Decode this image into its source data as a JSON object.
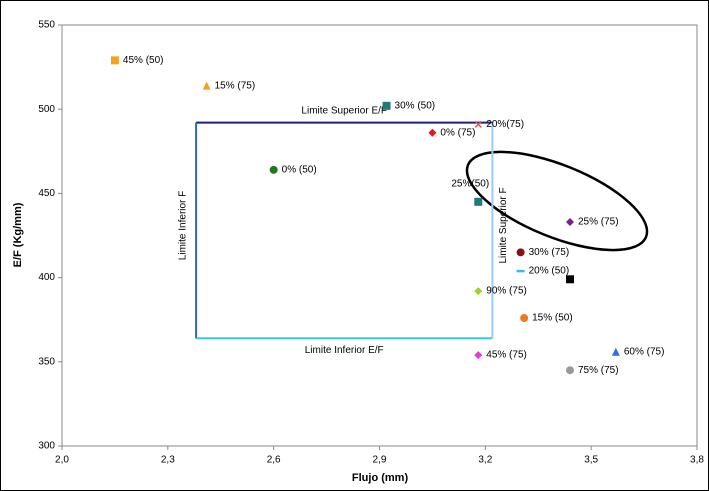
{
  "chart_data": {
    "type": "scatter",
    "x_label": "Flujo (mm)",
    "y_label": "E/F (Kg/mm)",
    "xlim": [
      2.0,
      3.8
    ],
    "xticks": [
      {
        "value": 2.0,
        "label": "2,0"
      },
      {
        "value": 2.3,
        "label": "2,3"
      },
      {
        "value": 2.6,
        "label": "2,6"
      },
      {
        "value": 2.9,
        "label": "2,9"
      },
      {
        "value": 3.2,
        "label": "3,2"
      },
      {
        "value": 3.5,
        "label": "3,5"
      },
      {
        "value": 3.8,
        "label": "3,8"
      }
    ],
    "ylim": [
      300,
      550
    ],
    "yticks": [
      300,
      350,
      400,
      450,
      500,
      550
    ],
    "series": [
      {
        "name": "45% (50)",
        "color": "#f5a11d",
        "marker": "square",
        "x": [
          2.15
        ],
        "values": [
          529
        ]
      },
      {
        "name": "15% (75)",
        "color": "#f5a11d",
        "marker": "triangle",
        "x": [
          2.41
        ],
        "values": [
          514
        ]
      },
      {
        "name": "30% (50)",
        "color": "#1f7a7a",
        "marker": "square",
        "x": [
          2.92
        ],
        "values": [
          502
        ]
      },
      {
        "name": "20%(75)",
        "color": "#e8553a",
        "marker": "x",
        "x": [
          3.18
        ],
        "values": [
          491
        ]
      },
      {
        "name": "0% (75)",
        "color": "#e8141e",
        "marker": "diamond",
        "x": [
          3.05
        ],
        "values": [
          486
        ]
      },
      {
        "name": "0% (50)",
        "color": "#1e7a1e",
        "marker": "circle",
        "x": [
          2.6
        ],
        "values": [
          464
        ]
      },
      {
        "name": "25%(50)",
        "color": "#1f7a7a",
        "marker": "square",
        "x": [
          3.18
        ],
        "values": [
          445
        ]
      },
      {
        "name": "25% (75)",
        "color": "#7a1f8c",
        "marker": "diamond",
        "x": [
          3.44
        ],
        "values": [
          433
        ]
      },
      {
        "name": "30% (75)",
        "color": "#8c1010",
        "marker": "circle",
        "x": [
          3.3
        ],
        "values": [
          415
        ]
      },
      {
        "name": "20% (50)",
        "color": "#33bbee",
        "marker": "dash",
        "x": [
          3.3
        ],
        "values": [
          404
        ]
      },
      {
        "color": "#000000",
        "marker": "square",
        "x": [
          3.44
        ],
        "values": [
          399
        ]
      },
      {
        "name": "90% (75)",
        "color": "#a8cc33",
        "marker": "diamond",
        "x": [
          3.18
        ],
        "values": [
          392
        ]
      },
      {
        "name": "15% (50)",
        "color": "#f07820",
        "marker": "circle",
        "x": [
          3.31
        ],
        "values": [
          376
        ]
      },
      {
        "name": "60% (75)",
        "color": "#2f6ee8",
        "marker": "triangle",
        "x": [
          3.57
        ],
        "values": [
          356
        ]
      },
      {
        "name": "45% (75)",
        "color": "#e83ad8",
        "marker": "diamond",
        "x": [
          3.18
        ],
        "values": [
          354
        ]
      },
      {
        "name": "75% (75)",
        "color": "#999999",
        "marker": "circle",
        "x": [
          3.44
        ],
        "values": [
          345
        ]
      }
    ],
    "limits": [
      {
        "label": "Limite Superior E/F",
        "axis": "y",
        "value": 492,
        "from": 2.38,
        "to": 3.22,
        "color": "#1f1f7a"
      },
      {
        "label": "Limite Inferior E/F",
        "axis": "y",
        "value": 364,
        "from": 2.38,
        "to": 3.22,
        "color": "#33ccee"
      },
      {
        "label": "Limite Inferior F",
        "axis": "x",
        "value": 2.38,
        "from": 364,
        "to": 492,
        "color": "#3366cc"
      },
      {
        "label": "Limite Superior F",
        "axis": "x",
        "value": 3.22,
        "from": 364,
        "to": 492,
        "color": "#99ccff"
      }
    ]
  }
}
